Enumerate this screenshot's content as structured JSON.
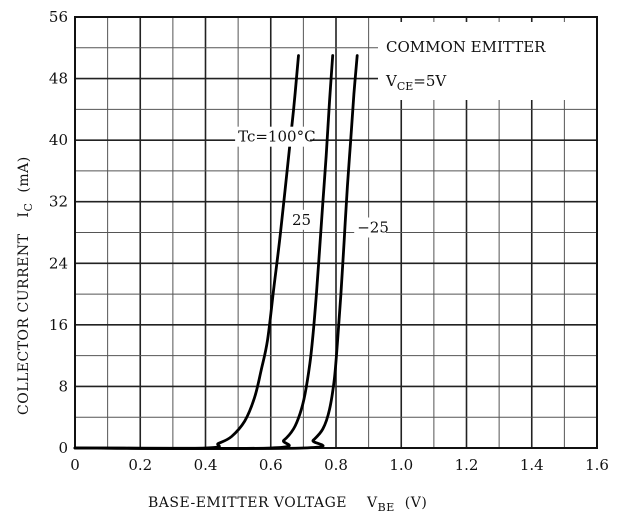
{
  "chart_data": {
    "type": "line",
    "xlabel": "BASE-EMITTER VOLTAGE",
    "xlabel_symbol": "V",
    "xlabel_sub": "BE",
    "xlabel_unit": "(V)",
    "ylabel": "COLLECTOR CURRENT",
    "ylabel_symbol": "I",
    "ylabel_sub": "C",
    "ylabel_unit": "(mA)",
    "xlim": [
      0,
      1.6
    ],
    "ylim": [
      0,
      56
    ],
    "x_ticks": [
      "0",
      "0.2",
      "0.4",
      "0.6",
      "0.8",
      "1.0",
      "1.2",
      "1.4",
      "1.6"
    ],
    "y_ticks": [
      "0",
      "8",
      "16",
      "24",
      "32",
      "40",
      "48",
      "56"
    ],
    "grid": true,
    "legend": {
      "line1": "COMMON EMITTER",
      "line2_symbol": "V",
      "line2_sub": "CE",
      "line2_value": "=5V",
      "placement": "top-right"
    },
    "series": [
      {
        "name": "Tc=100°C",
        "x": [
          0.0,
          0.4,
          0.44,
          0.48,
          0.52,
          0.55,
          0.57,
          0.59,
          0.61,
          0.63,
          0.65,
          0.67,
          0.685
        ],
        "y": [
          0,
          0,
          0.6,
          1.5,
          3.5,
          6.5,
          10,
          14,
          21,
          28,
          36,
          44,
          51
        ]
      },
      {
        "name": "25",
        "x": [
          0.0,
          0.6,
          0.64,
          0.67,
          0.69,
          0.705,
          0.72,
          0.73,
          0.74,
          0.75,
          0.76,
          0.77,
          0.78,
          0.79
        ],
        "y": [
          0,
          0,
          1,
          2.5,
          4.5,
          7,
          11,
          15,
          20,
          26,
          32,
          38,
          45,
          51
        ]
      },
      {
        "name": "−25",
        "x": [
          0.0,
          0.7,
          0.73,
          0.76,
          0.78,
          0.795,
          0.805,
          0.815,
          0.825,
          0.835,
          0.845,
          0.855,
          0.865
        ],
        "y": [
          0,
          0,
          1,
          2.5,
          5,
          9,
          14,
          20,
          27,
          34,
          40,
          46,
          51
        ]
      }
    ],
    "series_label_positions": [
      [
        0.5,
        39.8
      ],
      [
        0.665,
        29.0
      ],
      [
        0.865,
        28.0
      ]
    ]
  }
}
